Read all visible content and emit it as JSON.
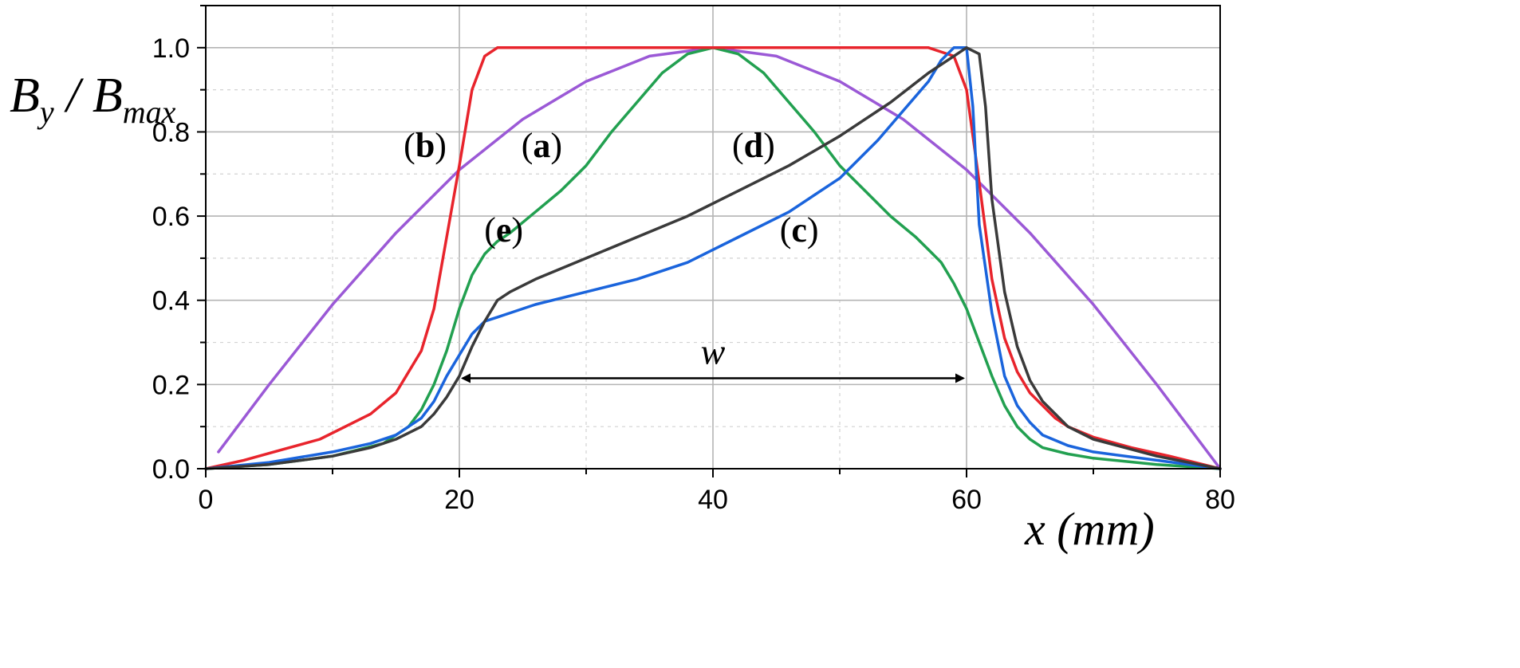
{
  "chart_data": {
    "type": "line",
    "title": "",
    "xlabel": "x (mm)",
    "ylabel": "B_y / B_max",
    "ylabel_parts": {
      "main": "B",
      "sub1": "y",
      "slash": " / ",
      "main2": "B",
      "sub2": "max"
    },
    "xlim": [
      0,
      80
    ],
    "ylim": [
      0,
      1.1
    ],
    "x_ticks": [
      0,
      20,
      40,
      60,
      80
    ],
    "y_ticks": [
      0.0,
      0.2,
      0.4,
      0.6,
      0.8,
      1.0
    ],
    "x_tick_labels": [
      "0",
      "20",
      "40",
      "60",
      "80"
    ],
    "y_tick_labels": [
      "0.0",
      "0.2",
      "0.4",
      "0.6",
      "0.8",
      "1.0"
    ],
    "grid": true,
    "colors": {
      "a": "#22a050",
      "b": "#e8242c",
      "c": "#1a64dc",
      "d": "#3a3a3a",
      "e": "#9b59d6"
    },
    "series": [
      {
        "name": "a",
        "x": [
          0,
          5,
          10,
          14,
          16,
          17,
          18,
          19,
          20,
          21,
          22,
          23,
          24,
          26,
          28,
          30,
          32,
          34,
          36,
          38,
          40,
          42,
          44,
          46,
          48,
          50,
          52,
          54,
          56,
          57,
          58,
          59,
          60,
          61,
          62,
          63,
          64,
          65,
          66,
          68,
          70,
          75,
          80
        ],
        "y": [
          0.0,
          0.01,
          0.03,
          0.06,
          0.1,
          0.14,
          0.2,
          0.28,
          0.38,
          0.46,
          0.51,
          0.54,
          0.56,
          0.61,
          0.66,
          0.72,
          0.8,
          0.87,
          0.94,
          0.985,
          1.0,
          0.985,
          0.94,
          0.87,
          0.8,
          0.72,
          0.66,
          0.6,
          0.55,
          0.52,
          0.49,
          0.44,
          0.38,
          0.3,
          0.22,
          0.15,
          0.1,
          0.07,
          0.05,
          0.035,
          0.025,
          0.01,
          0.0
        ]
      },
      {
        "name": "b",
        "x": [
          0,
          3,
          6,
          9,
          11,
          13,
          15,
          16,
          17,
          18,
          19,
          20,
          21,
          22,
          23,
          24,
          30,
          40,
          50,
          57,
          58,
          59,
          60,
          61,
          62,
          63,
          64,
          65,
          66,
          67,
          68,
          70,
          73,
          76,
          78,
          80
        ],
        "y": [
          0.0,
          0.02,
          0.045,
          0.07,
          0.1,
          0.13,
          0.18,
          0.23,
          0.28,
          0.38,
          0.55,
          0.72,
          0.9,
          0.98,
          1.0,
          1.0,
          1.0,
          1.0,
          1.0,
          1.0,
          0.99,
          0.98,
          0.9,
          0.68,
          0.45,
          0.31,
          0.23,
          0.18,
          0.15,
          0.12,
          0.1,
          0.075,
          0.05,
          0.03,
          0.015,
          0.0
        ]
      },
      {
        "name": "c",
        "x": [
          0,
          5,
          10,
          13,
          15,
          17,
          18,
          19,
          20,
          21,
          22,
          23,
          24,
          26,
          30,
          34,
          38,
          42,
          46,
          50,
          53,
          55,
          57,
          58,
          59,
          60,
          60.5,
          61,
          62,
          63,
          64,
          65,
          66,
          68,
          70,
          75,
          80
        ],
        "y": [
          0.0,
          0.015,
          0.04,
          0.06,
          0.08,
          0.12,
          0.16,
          0.22,
          0.27,
          0.32,
          0.35,
          0.36,
          0.37,
          0.39,
          0.42,
          0.45,
          0.49,
          0.55,
          0.61,
          0.69,
          0.78,
          0.85,
          0.92,
          0.97,
          1.0,
          1.0,
          0.86,
          0.58,
          0.37,
          0.22,
          0.15,
          0.11,
          0.08,
          0.055,
          0.04,
          0.02,
          0.0
        ]
      },
      {
        "name": "d",
        "x": [
          0,
          5,
          10,
          13,
          15,
          17,
          18,
          19,
          20,
          21,
          22,
          23,
          24,
          26,
          30,
          34,
          38,
          42,
          46,
          50,
          54,
          57,
          59,
          60,
          61,
          61.5,
          62,
          63,
          64,
          65,
          66,
          68,
          70,
          75,
          80
        ],
        "y": [
          0.0,
          0.01,
          0.03,
          0.05,
          0.07,
          0.1,
          0.13,
          0.17,
          0.22,
          0.29,
          0.35,
          0.4,
          0.42,
          0.45,
          0.5,
          0.55,
          0.6,
          0.66,
          0.72,
          0.79,
          0.87,
          0.94,
          0.98,
          1.0,
          0.985,
          0.86,
          0.64,
          0.42,
          0.29,
          0.21,
          0.16,
          0.1,
          0.07,
          0.03,
          0.0
        ]
      },
      {
        "name": "e",
        "x": [
          1,
          5,
          10,
          15,
          20,
          25,
          30,
          35,
          40,
          45,
          50,
          55,
          60,
          65,
          70,
          75,
          80
        ],
        "y": [
          0.04,
          0.2,
          0.39,
          0.56,
          0.71,
          0.83,
          0.92,
          0.98,
          1.0,
          0.98,
          0.92,
          0.83,
          0.71,
          0.56,
          0.39,
          0.2,
          0.0
        ]
      }
    ],
    "annotations": [
      {
        "id": "a",
        "text": "a",
        "x": 26.5,
        "y": 0.74
      },
      {
        "id": "b",
        "text": "b",
        "x": 17.3,
        "y": 0.74
      },
      {
        "id": "c",
        "text": "c",
        "x": 46.8,
        "y": 0.54
      },
      {
        "id": "d",
        "text": "d",
        "x": 43.2,
        "y": 0.74
      },
      {
        "id": "e",
        "text": "e",
        "x": 23.5,
        "y": 0.54
      }
    ],
    "width_arrow": {
      "label": "w",
      "x_start": 20,
      "x_end": 60,
      "y": 0.215
    }
  }
}
